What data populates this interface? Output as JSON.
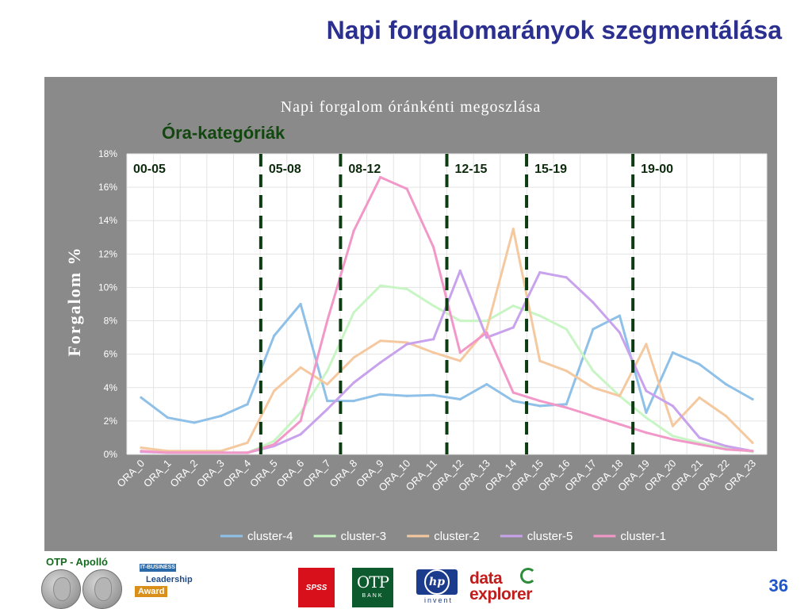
{
  "slide": {
    "title": "Napi forgalomarányok szegmentálása",
    "page_number": "36"
  },
  "footer": {
    "brand_label": "OTP - Apolló",
    "award_top": "IT-BUSINESS",
    "award_line1": "Leadership",
    "award_line2": "Award",
    "spss_label": "SPSS",
    "otp_main": "OTP",
    "otp_sub": "BANK",
    "hp_label": "hp",
    "hp_sub": "invent",
    "de_line1": "data",
    "de_line2": "explorer"
  },
  "chart_data": {
    "type": "line",
    "title": "Napi forgalom óránkénti megoszlása",
    "subtitle": "Óra-kategóriák",
    "ylabel": "Forgalom %",
    "xlabel": "",
    "ylim": [
      0,
      18
    ],
    "yticks": [
      "0%",
      "2%",
      "4%",
      "6%",
      "8%",
      "10%",
      "12%",
      "14%",
      "16%",
      "18%"
    ],
    "categories": [
      "ORA_0",
      "ORA_1",
      "ORA_2",
      "ORA_3",
      "ORA_4",
      "ORA_5",
      "ORA_6",
      "ORA_7",
      "ORA_8",
      "ORA_9",
      "ORA_10",
      "ORA_11",
      "ORA_12",
      "ORA_13",
      "ORA_14",
      "ORA_15",
      "ORA_16",
      "ORA_17",
      "ORA_18",
      "ORA_19",
      "ORA_20",
      "ORA_21",
      "ORA_22",
      "ORA_23"
    ],
    "grid": true,
    "legend_position": "bottom",
    "series": [
      {
        "name": "cluster-4",
        "color": "#8ec0e8",
        "values": [
          3.4,
          2.2,
          1.9,
          2.3,
          3.0,
          7.1,
          9.0,
          3.2,
          3.2,
          3.6,
          3.5,
          3.55,
          3.3,
          4.2,
          3.2,
          2.9,
          3.0,
          7.5,
          8.3,
          2.5,
          6.1,
          5.4,
          4.2,
          3.3
        ]
      },
      {
        "name": "cluster-3",
        "color": "#c8f5c4",
        "values": [
          0.2,
          0.1,
          0.1,
          0.1,
          0.1,
          0.8,
          2.5,
          5.0,
          8.5,
          10.1,
          9.9,
          8.9,
          8.0,
          8.0,
          8.9,
          8.3,
          7.5,
          5.0,
          3.5,
          2.2,
          1.1,
          0.7,
          0.4,
          0.15
        ]
      },
      {
        "name": "cluster-2",
        "color": "#f5c9a0",
        "values": [
          0.4,
          0.2,
          0.2,
          0.2,
          0.7,
          3.8,
          5.2,
          4.2,
          5.8,
          6.8,
          6.7,
          6.1,
          5.6,
          7.5,
          13.5,
          5.6,
          5.0,
          4.0,
          3.5,
          6.6,
          1.7,
          3.4,
          2.3,
          0.7
        ]
      },
      {
        "name": "cluster-5",
        "color": "#c8a2ec",
        "values": [
          0.15,
          0.1,
          0.1,
          0.1,
          0.1,
          0.5,
          1.2,
          2.7,
          4.3,
          5.5,
          6.6,
          6.9,
          11.0,
          7.0,
          7.6,
          10.9,
          10.6,
          9.1,
          7.3,
          3.8,
          2.9,
          1.0,
          0.5,
          0.2
        ]
      },
      {
        "name": "cluster-1",
        "color": "#f298c8",
        "values": [
          0.2,
          0.1,
          0.1,
          0.1,
          0.1,
          0.6,
          2.0,
          8.0,
          13.4,
          16.6,
          15.9,
          12.4,
          6.1,
          7.3,
          3.7,
          3.2,
          2.8,
          2.3,
          1.8,
          1.3,
          0.9,
          0.6,
          0.3,
          0.2
        ]
      }
    ],
    "segments": {
      "divider_hours": [
        4.5,
        7.5,
        11.5,
        14.5,
        18.5
      ],
      "labels": [
        "00-05",
        "05-08",
        "08-12",
        "12-15",
        "15-19",
        "19-00"
      ]
    }
  }
}
